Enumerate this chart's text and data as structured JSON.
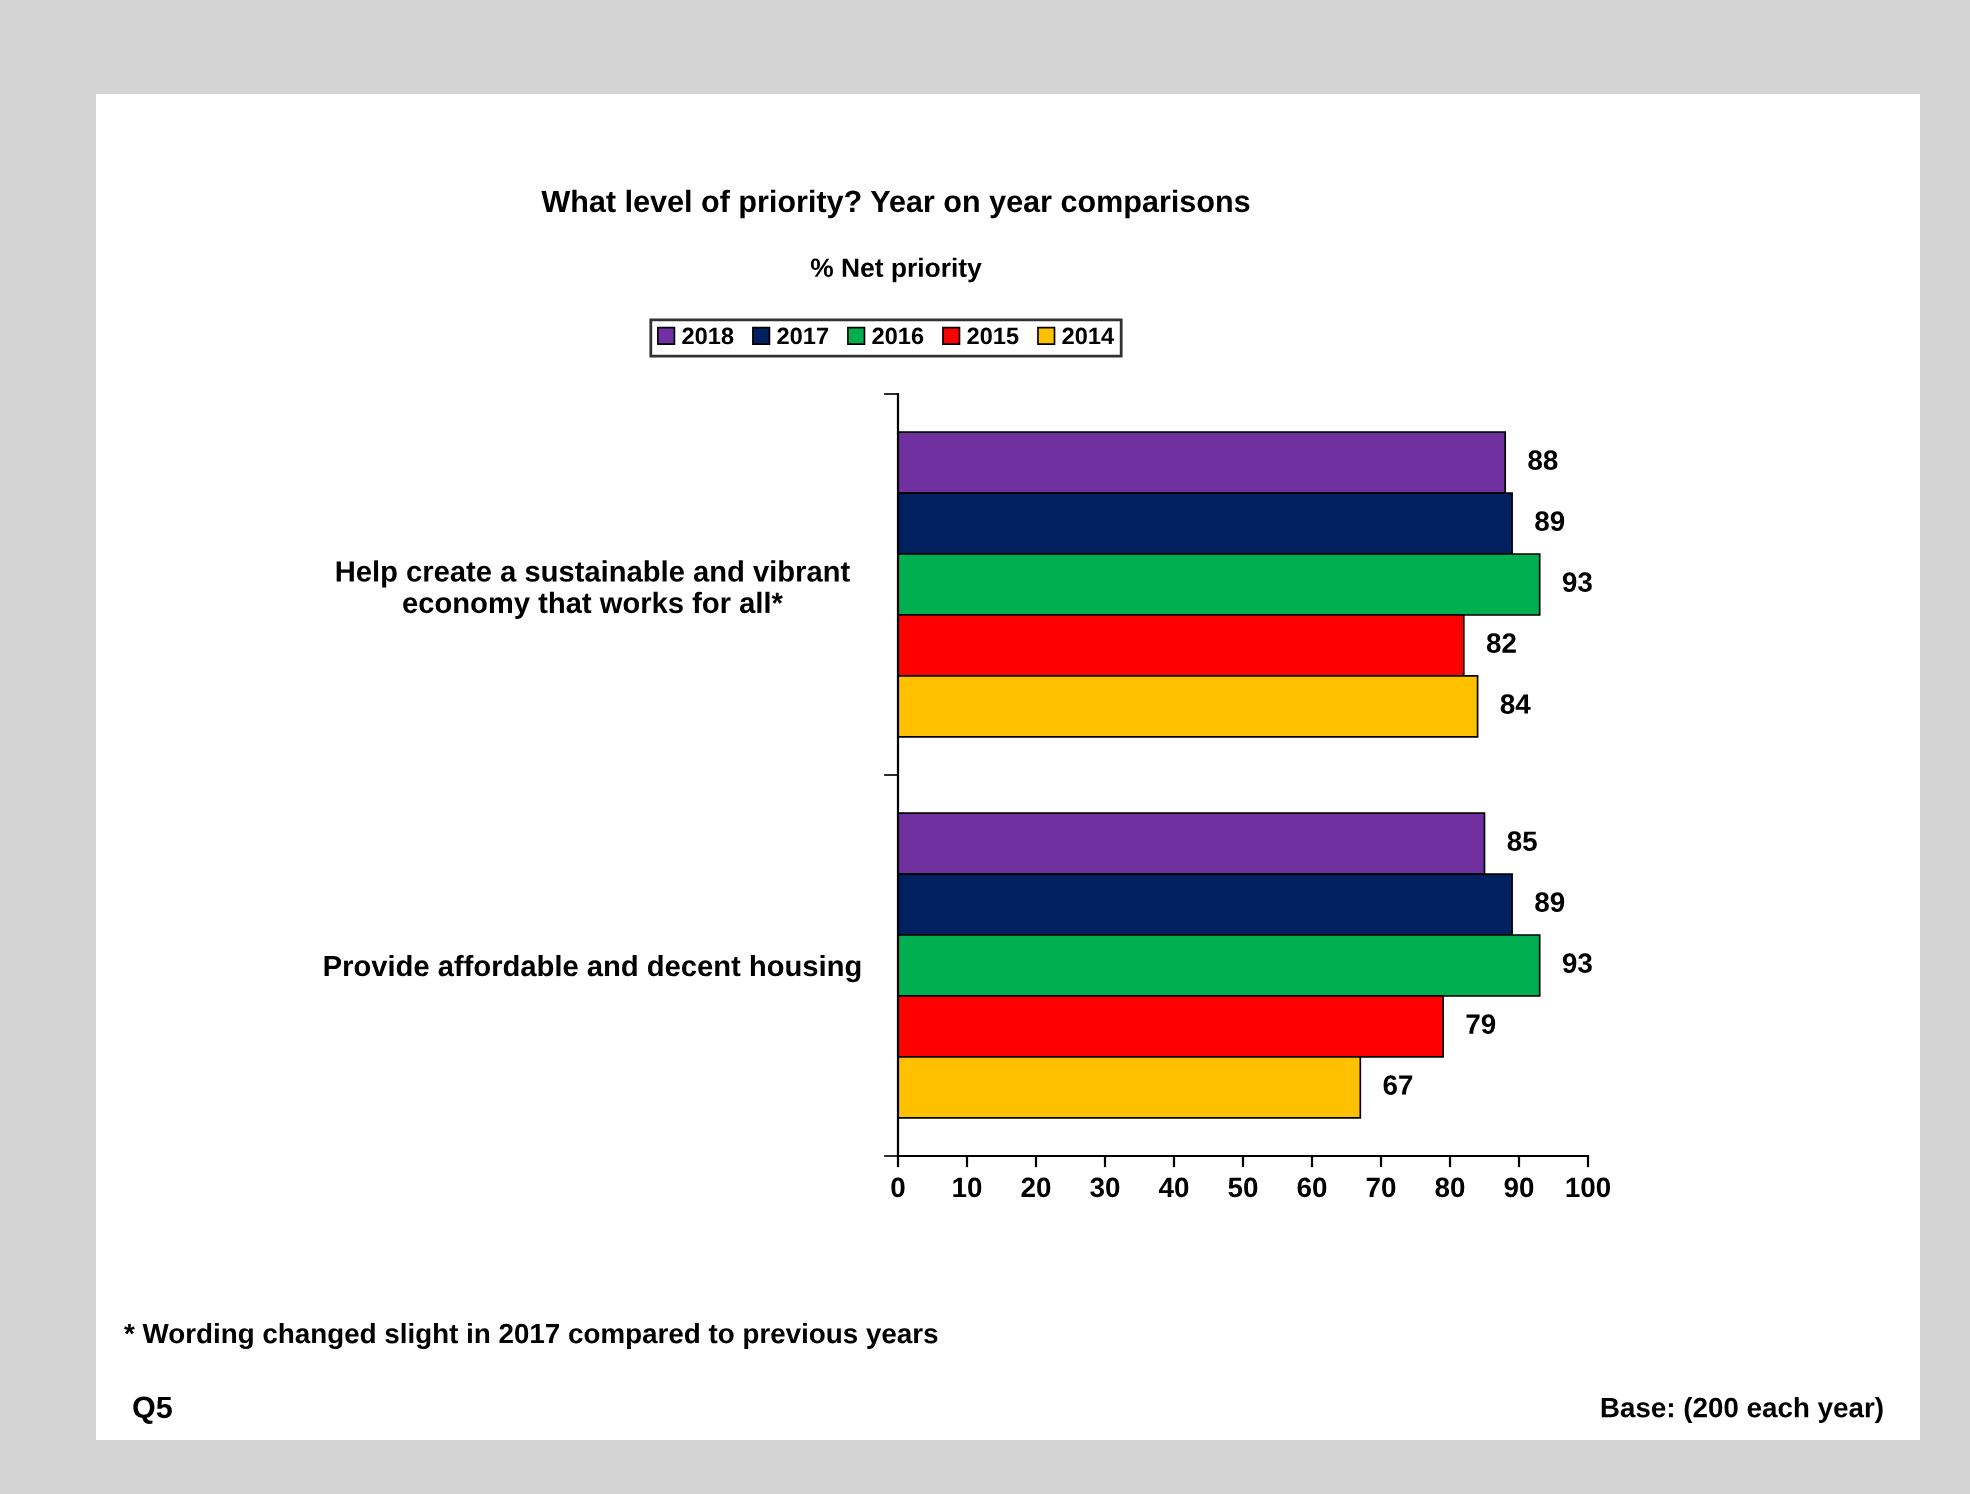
{
  "chart_data": {
    "type": "bar",
    "orientation": "horizontal",
    "title": "What level of priority? Year on year comparisons",
    "subtitle": "% Net priority",
    "categories": [
      "Help create a sustainable and vibrant\neconomy that works for all*",
      "Provide affordable and decent housing"
    ],
    "series": [
      {
        "name": "2018",
        "color": "#7030a0",
        "values": [
          88,
          85
        ]
      },
      {
        "name": "2017",
        "color": "#002060",
        "values": [
          89,
          89
        ]
      },
      {
        "name": "2016",
        "color": "#00b050",
        "values": [
          93,
          93
        ]
      },
      {
        "name": "2015",
        "color": "#ff0000",
        "values": [
          82,
          79
        ]
      },
      {
        "name": "2014",
        "color": "#ffc000",
        "values": [
          84,
          67
        ]
      }
    ],
    "xlim": [
      0,
      100
    ],
    "xticks": [
      0,
      10,
      20,
      30,
      40,
      50,
      60,
      70,
      80,
      90,
      100
    ],
    "data_labels": true,
    "legend": "top",
    "grid": false,
    "annotations": [
      "* Wording changed slight in 2017 compared to previous years",
      "Q5",
      "Base: (200 each year)"
    ]
  }
}
